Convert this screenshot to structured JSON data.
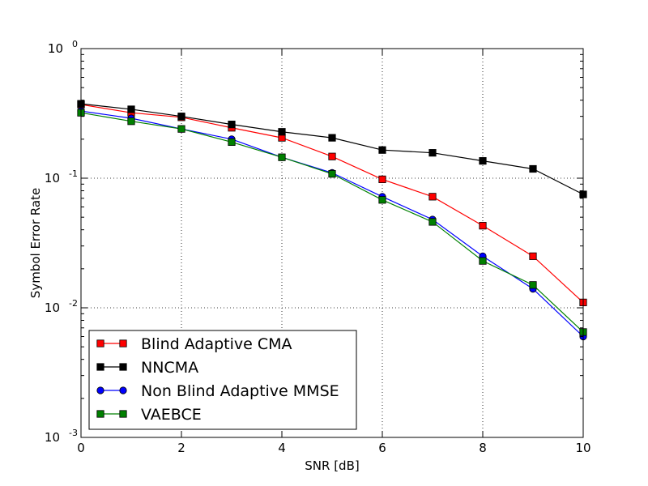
{
  "chart_data": {
    "type": "line",
    "title": "",
    "xlabel": "SNR [dB]",
    "ylabel": "Symbol Error Rate",
    "xlim": [
      0,
      10
    ],
    "ylim": [
      0.001,
      1
    ],
    "yscale": "log",
    "grid": true,
    "legend_position": "bottom-left",
    "x": [
      0,
      1,
      2,
      3,
      4,
      5,
      6,
      7,
      8,
      9,
      10
    ],
    "x_ticks": [
      {
        "value": 0,
        "label": "0"
      },
      {
        "value": 2,
        "label": "2"
      },
      {
        "value": 4,
        "label": "4"
      },
      {
        "value": 6,
        "label": "6"
      },
      {
        "value": 8,
        "label": "8"
      },
      {
        "value": 10,
        "label": "10"
      }
    ],
    "y_ticks": [
      {
        "value": 1,
        "base": "10",
        "exp": "0"
      },
      {
        "value": 0.1,
        "base": "10",
        "exp": "-1"
      },
      {
        "value": 0.01,
        "base": "10",
        "exp": "-2"
      },
      {
        "value": 0.001,
        "base": "10",
        "exp": "-3"
      }
    ],
    "series": [
      {
        "name": "Blind Adaptive CMA",
        "color": "#ff0000",
        "marker": "square",
        "values": [
          0.37,
          0.32,
          0.295,
          0.245,
          0.205,
          0.147,
          0.098,
          0.072,
          0.043,
          0.025,
          0.011
        ]
      },
      {
        "name": "NNCMA",
        "color": "#000000",
        "marker": "square",
        "values": [
          0.375,
          0.34,
          0.3,
          0.26,
          0.228,
          0.205,
          0.165,
          0.157,
          0.136,
          0.118,
          0.075
        ]
      },
      {
        "name": "Non Blind Adaptive MMSE",
        "color": "#0000ff",
        "marker": "circle",
        "values": [
          0.33,
          0.29,
          0.24,
          0.2,
          0.145,
          0.11,
          0.072,
          0.048,
          0.025,
          0.014,
          0.006
        ]
      },
      {
        "name": "VAEBCE",
        "color": "#008000",
        "marker": "square",
        "values": [
          0.32,
          0.275,
          0.24,
          0.19,
          0.145,
          0.108,
          0.068,
          0.046,
          0.023,
          0.015,
          0.0065
        ]
      }
    ]
  }
}
